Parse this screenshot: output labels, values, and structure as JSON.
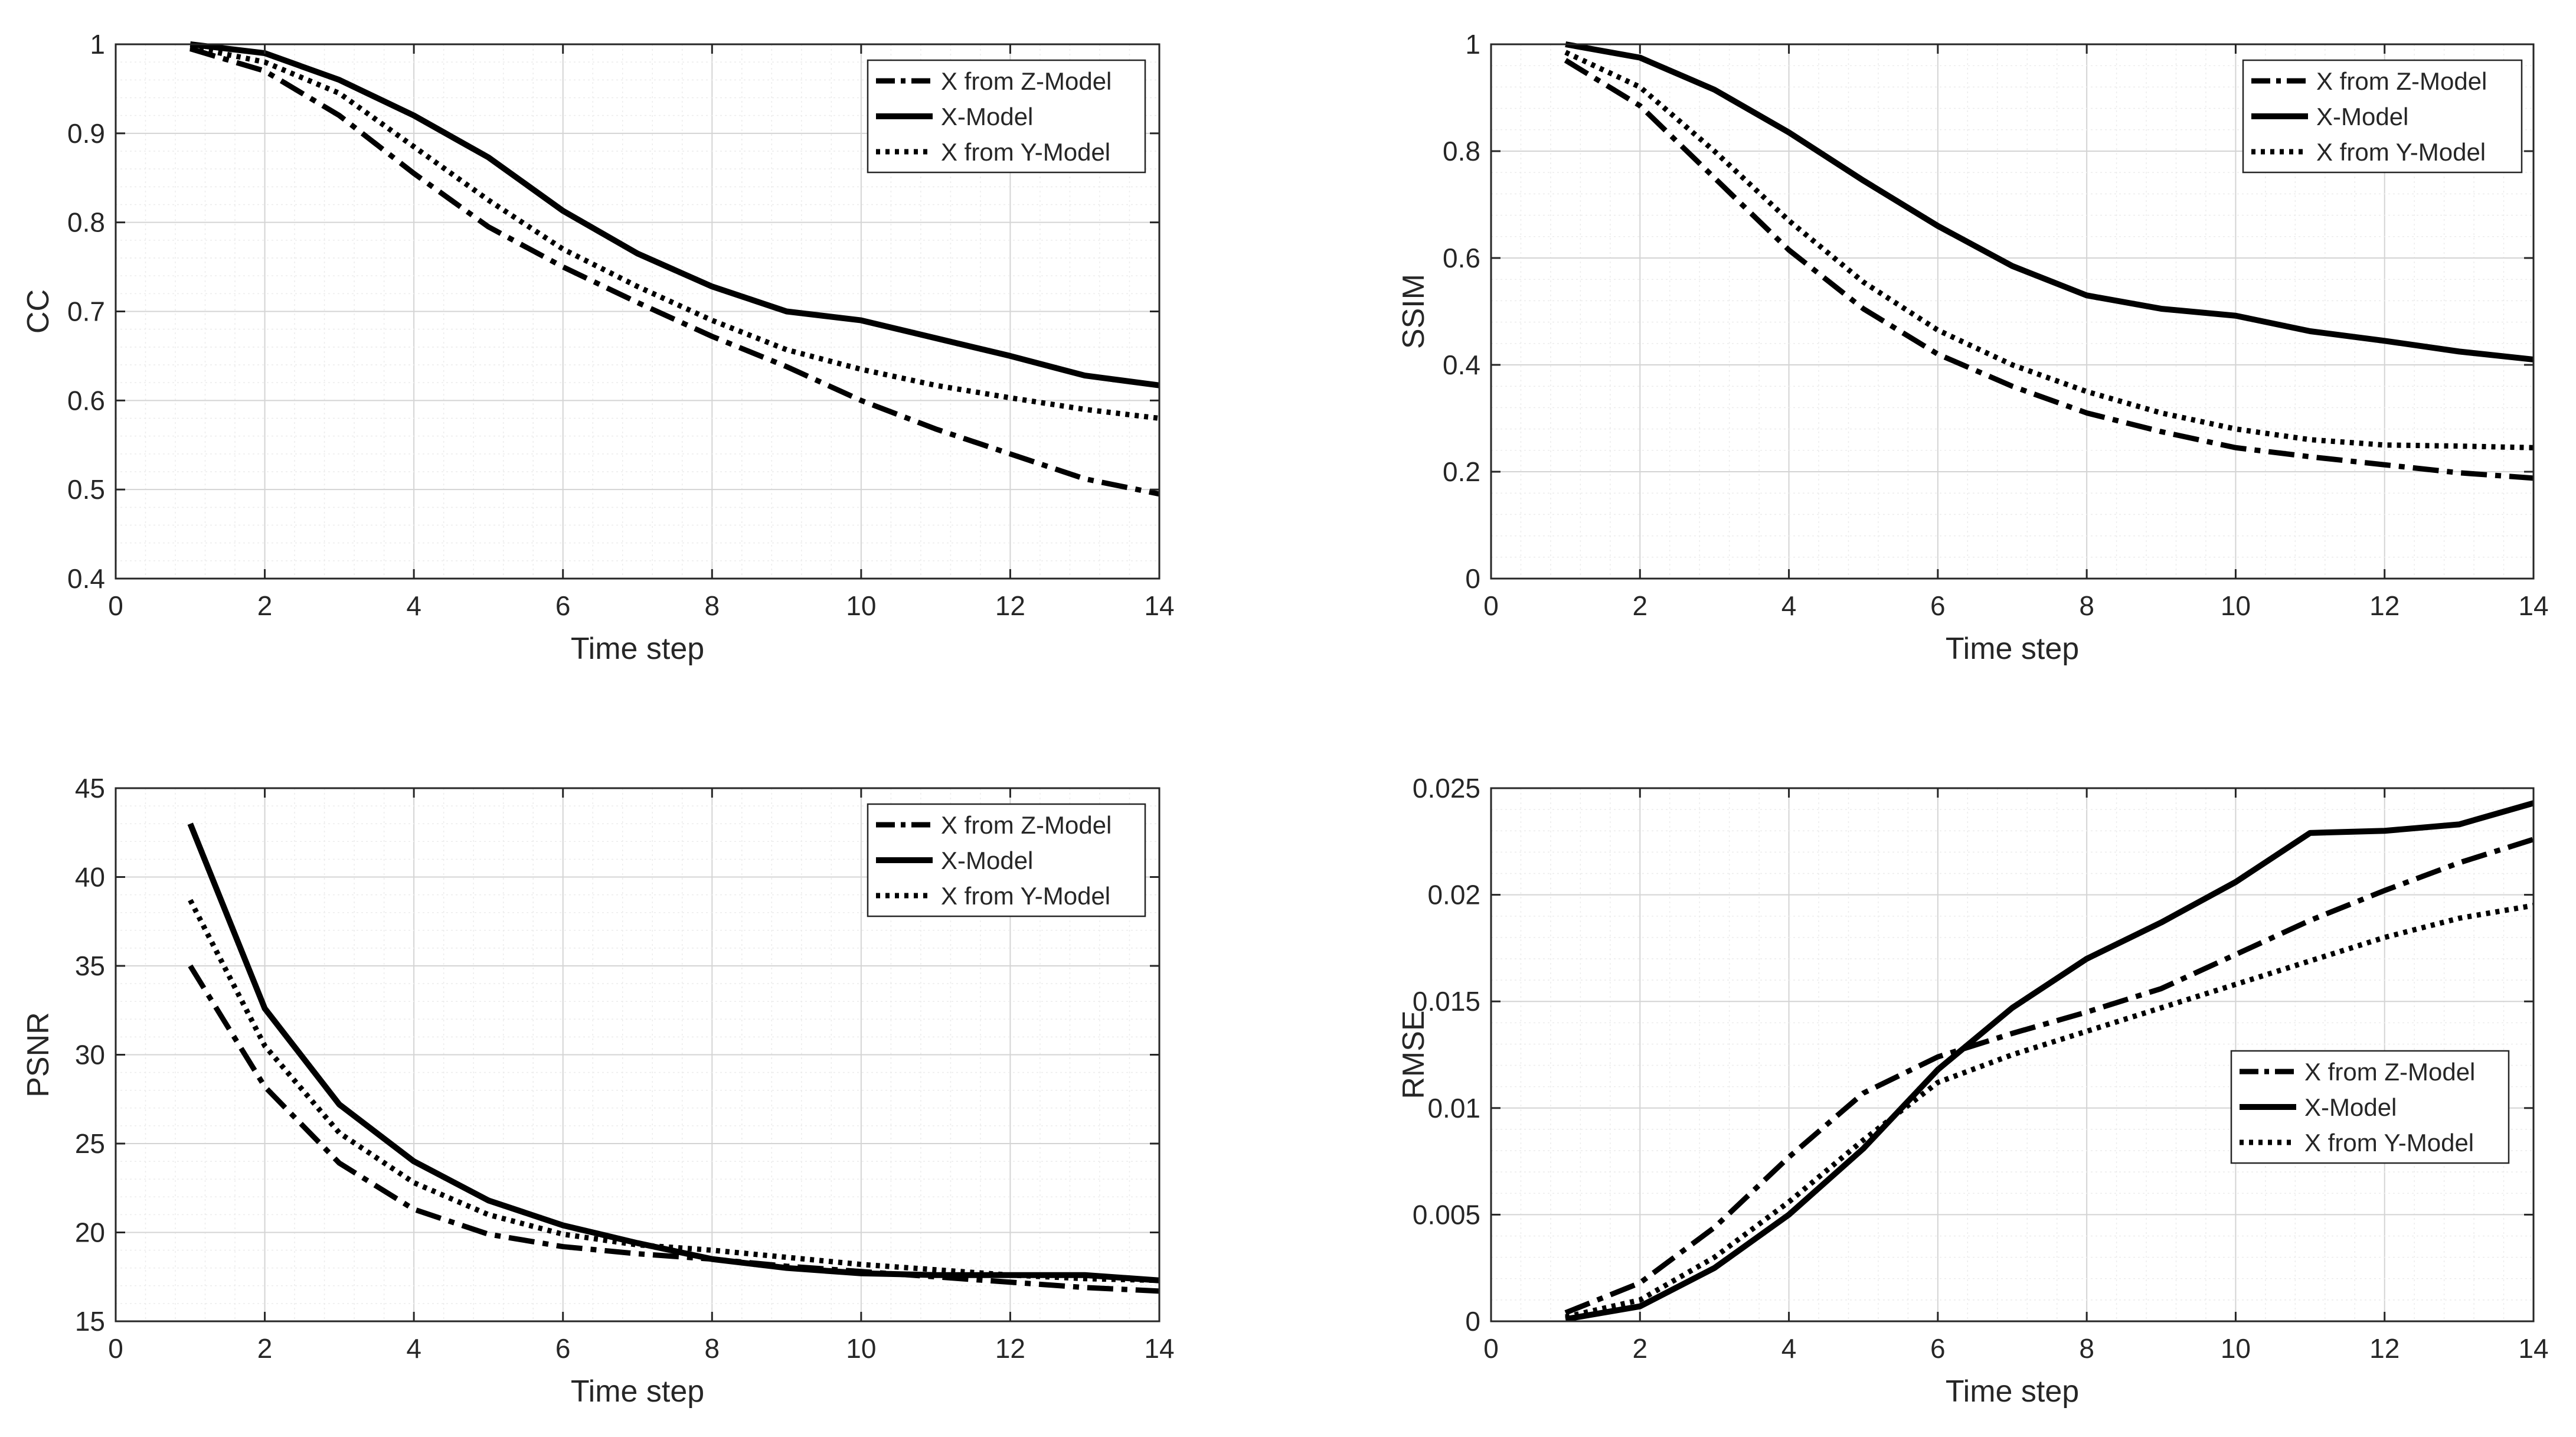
{
  "chart_data": [
    {
      "type": "line",
      "xlabel": "Time step",
      "ylabel": "CC",
      "xlim": [
        0,
        14
      ],
      "ylim": [
        0.4,
        1
      ],
      "xticks": [
        0,
        2,
        4,
        6,
        8,
        10,
        12,
        14
      ],
      "xtick_labels": [
        "0",
        "2",
        "4",
        "6",
        "8",
        "10",
        "12",
        "14"
      ],
      "yticks": [
        0.4,
        0.5,
        0.6,
        0.7,
        0.8,
        0.9,
        1
      ],
      "ytick_labels": [
        "0.4",
        "0.5",
        "0.6",
        "0.7",
        "0.8",
        "0.9",
        "1"
      ],
      "grid": true,
      "legend_position": "top-right",
      "x": [
        1,
        2,
        3,
        4,
        5,
        6,
        7,
        8,
        9,
        10,
        11,
        12,
        13,
        14
      ],
      "series": [
        {
          "name": "X from Z-Model",
          "style": "dashdot",
          "values": [
            0.995,
            0.97,
            0.92,
            0.855,
            0.795,
            0.75,
            0.71,
            0.672,
            0.638,
            0.6,
            0.568,
            0.54,
            0.512,
            0.495
          ]
        },
        {
          "name": "X-Model",
          "style": "solid",
          "values": [
            1.0,
            0.99,
            0.96,
            0.92,
            0.873,
            0.813,
            0.765,
            0.728,
            0.7,
            0.69,
            0.67,
            0.65,
            0.628,
            0.617
          ]
        },
        {
          "name": "X from Y-Model",
          "style": "dotted",
          "values": [
            0.997,
            0.98,
            0.945,
            0.885,
            0.825,
            0.77,
            0.728,
            0.69,
            0.657,
            0.635,
            0.617,
            0.603,
            0.59,
            0.58
          ]
        }
      ]
    },
    {
      "type": "line",
      "xlabel": "Time step",
      "ylabel": "SSIM",
      "xlim": [
        0,
        14
      ],
      "ylim": [
        0,
        1
      ],
      "xticks": [
        0,
        2,
        4,
        6,
        8,
        10,
        12,
        14
      ],
      "xtick_labels": [
        "0",
        "2",
        "4",
        "6",
        "8",
        "10",
        "12",
        "14"
      ],
      "yticks": [
        0,
        0.2,
        0.4,
        0.6,
        0.8,
        1
      ],
      "ytick_labels": [
        "0",
        "0.2",
        "0.4",
        "0.6",
        "0.8",
        "1"
      ],
      "grid": true,
      "legend_position": "top-right",
      "x": [
        1,
        2,
        3,
        4,
        5,
        6,
        7,
        8,
        9,
        10,
        11,
        12,
        13,
        14
      ],
      "series": [
        {
          "name": "X from Z-Model",
          "style": "dashdot",
          "values": [
            0.97,
            0.885,
            0.75,
            0.615,
            0.505,
            0.42,
            0.36,
            0.31,
            0.275,
            0.245,
            0.228,
            0.213,
            0.198,
            0.188
          ]
        },
        {
          "name": "X-Model",
          "style": "solid",
          "values": [
            1.0,
            0.975,
            0.915,
            0.835,
            0.745,
            0.66,
            0.585,
            0.53,
            0.505,
            0.492,
            0.463,
            0.445,
            0.425,
            0.41
          ]
        },
        {
          "name": "X from Y-Model",
          "style": "dotted",
          "values": [
            0.985,
            0.92,
            0.8,
            0.67,
            0.555,
            0.465,
            0.4,
            0.35,
            0.31,
            0.28,
            0.26,
            0.25,
            0.248,
            0.245
          ]
        }
      ]
    },
    {
      "type": "line",
      "xlabel": "Time step",
      "ylabel": "PSNR",
      "xlim": [
        0,
        14
      ],
      "ylim": [
        15,
        45
      ],
      "xticks": [
        0,
        2,
        4,
        6,
        8,
        10,
        12,
        14
      ],
      "xtick_labels": [
        "0",
        "2",
        "4",
        "6",
        "8",
        "10",
        "12",
        "14"
      ],
      "yticks": [
        15,
        20,
        25,
        30,
        35,
        40,
        45
      ],
      "ytick_labels": [
        "15",
        "20",
        "25",
        "30",
        "35",
        "40",
        "45"
      ],
      "grid": true,
      "legend_position": "top-right",
      "x": [
        1,
        2,
        3,
        4,
        5,
        6,
        7,
        8,
        9,
        10,
        11,
        12,
        13,
        14
      ],
      "series": [
        {
          "name": "X from Z-Model",
          "style": "dashdot",
          "values": [
            35.0,
            28.2,
            23.9,
            21.3,
            19.9,
            19.2,
            18.8,
            18.5,
            18.1,
            17.8,
            17.5,
            17.2,
            16.9,
            16.7
          ]
        },
        {
          "name": "X-Model",
          "style": "solid",
          "values": [
            43.0,
            32.6,
            27.2,
            24.0,
            21.8,
            20.4,
            19.4,
            18.5,
            18.0,
            17.7,
            17.6,
            17.6,
            17.6,
            17.3
          ]
        },
        {
          "name": "X from Y-Model",
          "style": "dotted",
          "values": [
            38.7,
            30.5,
            25.6,
            22.8,
            21.0,
            19.9,
            19.3,
            19.0,
            18.6,
            18.2,
            17.9,
            17.6,
            17.4,
            17.3
          ]
        }
      ]
    },
    {
      "type": "line",
      "xlabel": "Time step",
      "ylabel": "RMSE",
      "xlim": [
        0,
        14
      ],
      "ylim": [
        0,
        0.025
      ],
      "xticks": [
        0,
        2,
        4,
        6,
        8,
        10,
        12,
        14
      ],
      "xtick_labels": [
        "0",
        "2",
        "4",
        "6",
        "8",
        "10",
        "12",
        "14"
      ],
      "yticks": [
        0,
        0.005,
        0.01,
        0.015,
        0.02,
        0.025
      ],
      "ytick_labels": [
        "0",
        "0.005",
        "0.01",
        "0.015",
        "0.02",
        "0.025"
      ],
      "grid": true,
      "legend_position": "center-right",
      "x": [
        1,
        2,
        3,
        4,
        5,
        6,
        7,
        8,
        9,
        10,
        11,
        12,
        13,
        14
      ],
      "series": [
        {
          "name": "X from Z-Model",
          "style": "dashdot",
          "values": [
            0.0004,
            0.0018,
            0.0044,
            0.0077,
            0.0107,
            0.0124,
            0.0135,
            0.0145,
            0.0156,
            0.0172,
            0.0188,
            0.0202,
            0.0215,
            0.0226
          ]
        },
        {
          "name": "X-Model",
          "style": "solid",
          "values": [
            0.0001,
            0.0007,
            0.0025,
            0.005,
            0.0081,
            0.0118,
            0.0147,
            0.017,
            0.0187,
            0.0206,
            0.0229,
            0.023,
            0.0233,
            0.0243
          ]
        },
        {
          "name": "X from Y-Model",
          "style": "dotted",
          "values": [
            0.0002,
            0.001,
            0.003,
            0.0056,
            0.0085,
            0.0112,
            0.0125,
            0.0136,
            0.0147,
            0.0158,
            0.0169,
            0.018,
            0.0189,
            0.0195
          ]
        }
      ]
    }
  ]
}
